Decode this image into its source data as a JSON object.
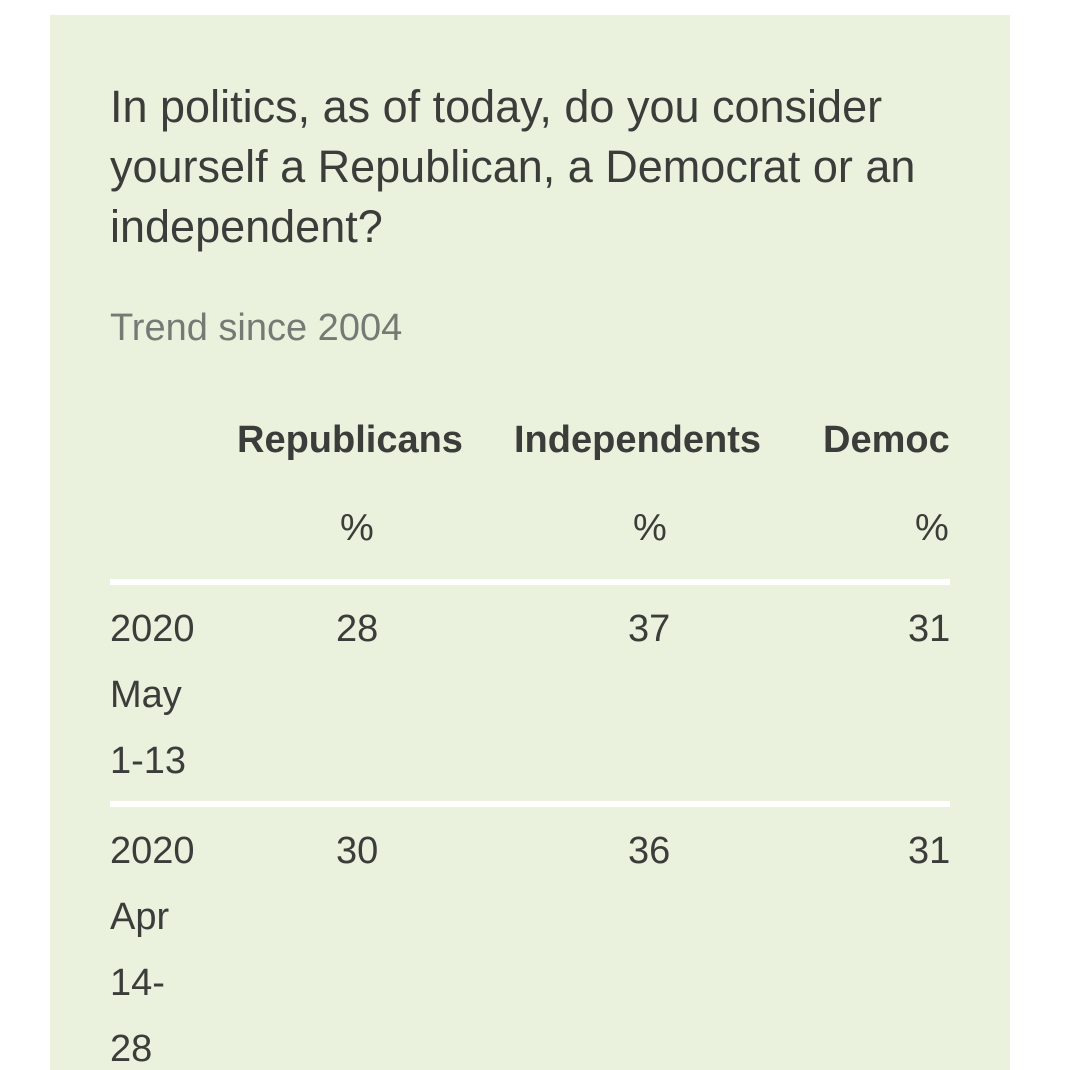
{
  "question": "In politics, as of today, do you consider yourself a Republican, a Democrat or an independent?",
  "subtitle": "Trend since 2004",
  "table": {
    "columns": [
      {
        "label": "Republicans",
        "unit": "%"
      },
      {
        "label": "Independents",
        "unit": "%"
      },
      {
        "label": "Democrats",
        "unit": "%"
      }
    ],
    "rows": [
      {
        "date_lines": [
          "2020",
          "May",
          "1-13"
        ],
        "values": [
          "28",
          "37",
          "31"
        ]
      },
      {
        "date_lines": [
          "2020",
          "Apr",
          "14-",
          "28"
        ],
        "values": [
          "30",
          "36",
          "31"
        ]
      }
    ]
  },
  "colors": {
    "card_background": "#eaf2dd",
    "text": "#3a3d3a",
    "muted_text": "#757a74",
    "row_rule": "#ffffff"
  }
}
